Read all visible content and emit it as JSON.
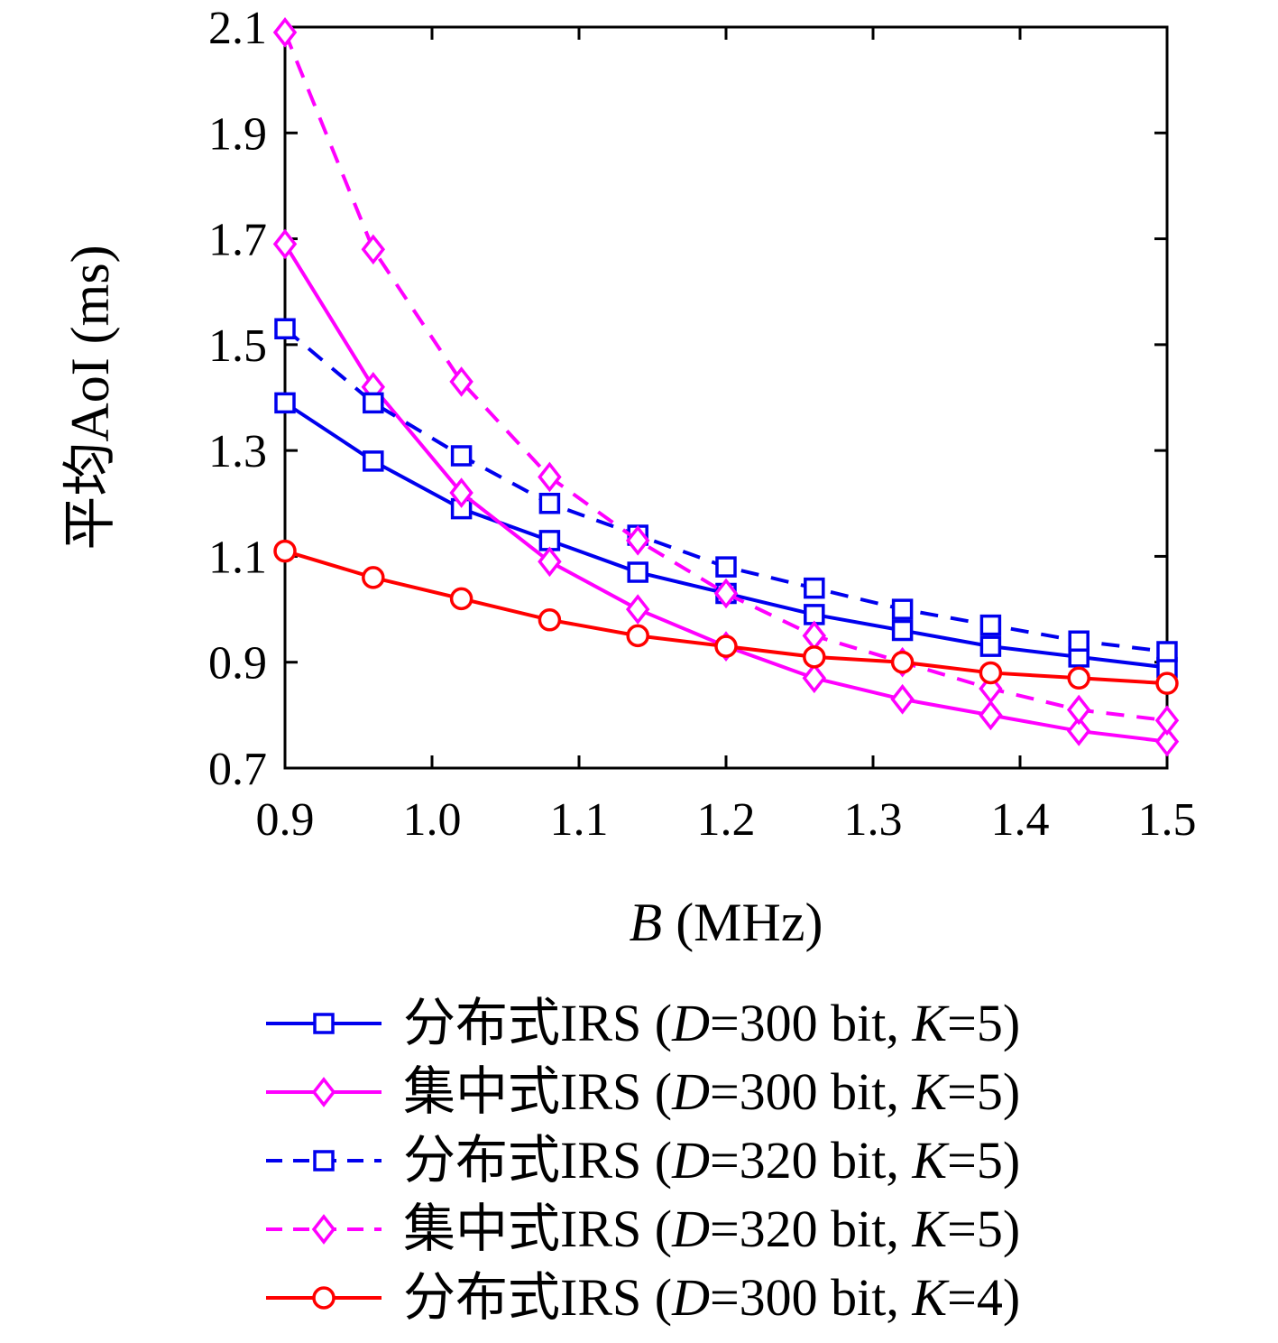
{
  "figure": {
    "background": "#ffffff",
    "text_color": "#000000"
  },
  "chart_data": {
    "type": "line",
    "title": "",
    "xlabel": "B (MHz)",
    "ylabel": "平均AoI (ms)",
    "xlim": [
      0.9,
      1.5
    ],
    "ylim": [
      0.7,
      2.1
    ],
    "grid": false,
    "legend_position": "below",
    "xticks": [
      0.9,
      1.0,
      1.1,
      1.2,
      1.3,
      1.4,
      1.5
    ],
    "xtick_labels": [
      "0.9",
      "1.0",
      "1.1",
      "1.2",
      "1.3",
      "1.4",
      "1.5"
    ],
    "yticks": [
      0.7,
      0.9,
      1.1,
      1.3,
      1.5,
      1.7,
      1.9,
      2.1
    ],
    "ytick_labels": [
      "0.7",
      "0.9",
      "1.1",
      "1.3",
      "1.5",
      "1.7",
      "1.9",
      "2.1"
    ],
    "x": [
      0.9,
      0.96,
      1.02,
      1.08,
      1.14,
      1.2,
      1.26,
      1.32,
      1.38,
      1.44,
      1.5
    ],
    "series": [
      {
        "name": "分布式IRS (D=300 bit, K=5)",
        "color": "#0000ee",
        "line": "solid",
        "marker": "square",
        "values": [
          1.39,
          1.28,
          1.19,
          1.13,
          1.07,
          1.03,
          0.99,
          0.96,
          0.93,
          0.91,
          0.89
        ]
      },
      {
        "name": "集中式IRS (D=300 bit, K=5)",
        "color": "#ff00ff",
        "line": "solid",
        "marker": "diamond",
        "values": [
          1.69,
          1.42,
          1.22,
          1.09,
          1.0,
          0.93,
          0.87,
          0.83,
          0.8,
          0.77,
          0.75
        ]
      },
      {
        "name": "分布式IRS (D=320 bit, K=5)",
        "color": "#0000ee",
        "line": "dashed",
        "marker": "square",
        "values": [
          1.53,
          1.39,
          1.29,
          1.2,
          1.14,
          1.08,
          1.04,
          1.0,
          0.97,
          0.94,
          0.92
        ]
      },
      {
        "name": "集中式IRS (D=320 bit, K=5)",
        "color": "#ff00ff",
        "line": "dashed",
        "marker": "diamond",
        "values": [
          2.09,
          1.68,
          1.43,
          1.25,
          1.13,
          1.03,
          0.95,
          0.9,
          0.85,
          0.81,
          0.79
        ]
      },
      {
        "name": "分布式IRS (D=300 bit, K=4)",
        "color": "#ff0000",
        "line": "solid",
        "marker": "circle",
        "values": [
          1.11,
          1.06,
          1.02,
          0.98,
          0.95,
          0.93,
          0.91,
          0.9,
          0.88,
          0.87,
          0.86
        ]
      }
    ]
  }
}
